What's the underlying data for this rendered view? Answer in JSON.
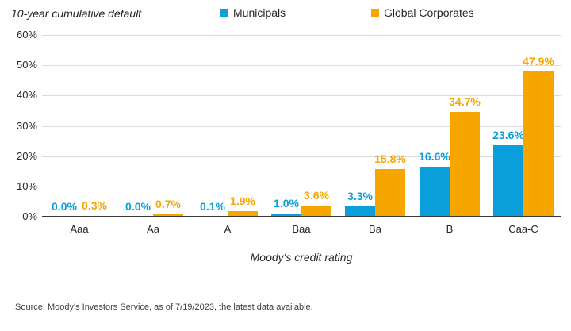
{
  "title": "10-year cumulative default",
  "source": "Source: Moody's Investors Service, as of 7/19/2023, the latest data available.",
  "colors": {
    "municipals_blue": "#0a9eda",
    "corporates_orange": "#f7a600",
    "gridline_gray": "#dcdcdc",
    "axis_dark": "#3a3a3a"
  },
  "chart_data": {
    "type": "bar",
    "title": "10-year cumulative default",
    "categories": [
      "Aaa",
      "Aa",
      "A",
      "Baa",
      "Ba",
      "B",
      "Caa-C"
    ],
    "series": [
      {
        "name": "Municipals",
        "color": "#0a9eda",
        "values": [
          0.0,
          0.0,
          0.1,
          1.0,
          3.3,
          16.6,
          23.6
        ],
        "labels": [
          "0.0%",
          "0.0%",
          "0.1%",
          "1.0%",
          "3.3%",
          "16.6%",
          "23.6%"
        ]
      },
      {
        "name": "Global Corporates",
        "color": "#f7a600",
        "values": [
          0.3,
          0.7,
          1.9,
          3.6,
          15.8,
          34.7,
          47.9
        ],
        "labels": [
          "0.3%",
          "0.7%",
          "1.9%",
          "3.6%",
          "15.8%",
          "34.7%",
          "47.9%"
        ]
      }
    ],
    "xlabel": "Moody's credit rating",
    "ylabel": "",
    "ylim": [
      0,
      60
    ],
    "yticks": [
      "0%",
      "10%",
      "20%",
      "30%",
      "40%",
      "50%",
      "60%"
    ],
    "grid": true,
    "legend_position": "top",
    "data_labels": true
  }
}
